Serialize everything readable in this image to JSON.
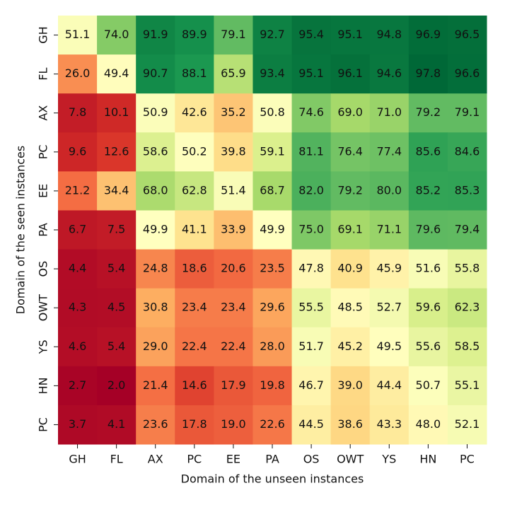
{
  "chart_data": {
    "type": "heatmap",
    "colormap": "RdYlGn",
    "xlabel": "Domain of the unseen instances",
    "ylabel": "Domain of the seen instances",
    "categories": [
      "GH",
      "FL",
      "AX",
      "PC",
      "EE",
      "PA",
      "OS",
      "OWT",
      "YS",
      "HN",
      "PC"
    ],
    "y_categories": [
      "GH",
      "FL",
      "AX",
      "PC",
      "EE",
      "PA",
      "OS",
      "OWT",
      "YS",
      "HN",
      "PC"
    ],
    "values": [
      [
        51.1,
        74.0,
        91.9,
        89.9,
        79.1,
        92.7,
        95.4,
        95.1,
        94.8,
        96.9,
        96.5
      ],
      [
        26.0,
        49.4,
        90.7,
        88.1,
        65.9,
        93.4,
        95.1,
        96.1,
        94.6,
        97.8,
        96.6
      ],
      [
        7.8,
        10.1,
        50.9,
        42.6,
        35.2,
        50.8,
        74.6,
        69.0,
        71.0,
        79.2,
        79.1
      ],
      [
        9.6,
        12.6,
        58.6,
        50.2,
        39.8,
        59.1,
        81.1,
        76.4,
        77.4,
        85.6,
        84.6
      ],
      [
        21.2,
        34.4,
        68.0,
        62.8,
        51.4,
        68.7,
        82.0,
        79.2,
        80.0,
        85.2,
        85.3
      ],
      [
        6.7,
        7.5,
        49.9,
        41.1,
        33.9,
        49.9,
        75.0,
        69.1,
        71.1,
        79.6,
        79.4
      ],
      [
        4.4,
        5.4,
        24.8,
        18.6,
        20.6,
        23.5,
        47.8,
        40.9,
        45.9,
        51.6,
        55.8
      ],
      [
        4.3,
        4.5,
        30.8,
        23.4,
        23.4,
        29.6,
        55.5,
        48.5,
        52.7,
        59.6,
        62.3
      ],
      [
        4.6,
        5.4,
        29.0,
        22.4,
        22.4,
        28.0,
        51.7,
        45.2,
        49.5,
        55.6,
        58.5
      ],
      [
        2.7,
        2.0,
        21.4,
        14.6,
        17.9,
        19.8,
        46.7,
        39.0,
        44.4,
        50.7,
        55.1
      ],
      [
        3.7,
        4.1,
        23.6,
        17.8,
        19.0,
        22.6,
        44.5,
        38.6,
        43.3,
        48.0,
        52.1
      ]
    ],
    "value_labels": [
      [
        "51.1",
        "74.0",
        "91.9",
        "89.9",
        "79.1",
        "92.7",
        "95.4",
        "95.1",
        "94.8",
        "96.9",
        "96.5"
      ],
      [
        "26.0",
        "49.4",
        "90.7",
        "88.1",
        "65.9",
        "93.4",
        "95.1",
        "96.1",
        "94.6",
        "97.8",
        "96.6"
      ],
      [
        "7.8",
        "10.1",
        "50.9",
        "42.6",
        "35.2",
        "50.8",
        "74.6",
        "69.0",
        "71.0",
        "79.2",
        "79.1"
      ],
      [
        "9.6",
        "12.6",
        "58.6",
        "50.2",
        "39.8",
        "59.1",
        "81.1",
        "76.4",
        "77.4",
        "85.6",
        "84.6"
      ],
      [
        "21.2",
        "34.4",
        "68.0",
        "62.8",
        "51.4",
        "68.7",
        "82.0",
        "79.2",
        "80.0",
        "85.2",
        "85.3"
      ],
      [
        "6.7",
        "7.5",
        "49.9",
        "41.1",
        "33.9",
        "49.9",
        "75.0",
        "69.1",
        "71.1",
        "79.6",
        "79.4"
      ],
      [
        "4.4",
        "5.4",
        "24.8",
        "18.6",
        "20.6",
        "23.5",
        "47.8",
        "40.9",
        "45.9",
        "51.6",
        "55.8"
      ],
      [
        "4.3",
        "4.5",
        "30.8",
        "23.4",
        "23.4",
        "29.6",
        "55.5",
        "48.5",
        "52.7",
        "59.6",
        "62.3"
      ],
      [
        "4.6",
        "5.4",
        "29.0",
        "22.4",
        "22.4",
        "28.0",
        "51.7",
        "45.2",
        "49.5",
        "55.6",
        "58.5"
      ],
      [
        "2.7",
        "2.0",
        "21.4",
        "14.6",
        "17.9",
        "19.8",
        "46.7",
        "39.0",
        "44.4",
        "50.7",
        "55.1"
      ],
      [
        "3.7",
        "4.1",
        "23.6",
        "17.8",
        "19.0",
        "22.6",
        "44.5",
        "38.6",
        "43.3",
        "48.0",
        "52.1"
      ]
    ]
  }
}
